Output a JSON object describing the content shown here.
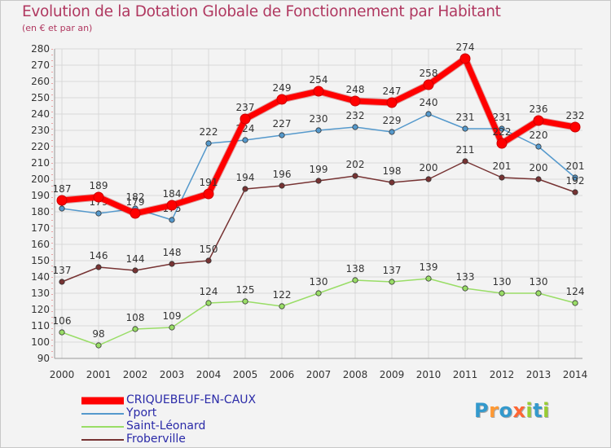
{
  "chart_data": {
    "type": "line",
    "title": "Evolution de la Dotation Globale de Fonctionnement par Habitant",
    "subtitle": "(en € et par an)",
    "xlabel": "",
    "ylabel": "",
    "ylim": [
      90,
      280
    ],
    "ytick_step": 10,
    "grid": true,
    "categories": [
      "2000",
      "2001",
      "2002",
      "2003",
      "2004",
      "2005",
      "2006",
      "2007",
      "2008",
      "2009",
      "2010",
      "2011",
      "2012",
      "2013",
      "2014"
    ],
    "series": [
      {
        "name": "CRIQUEBEUF-EN-CAUX",
        "color": "#ff0000",
        "values": [
          187,
          189,
          179,
          184,
          191,
          237,
          249,
          254,
          248,
          247,
          258,
          274,
          222,
          236,
          232
        ],
        "labels": [
          "187",
          "189",
          "179",
          "184",
          "191",
          "237",
          "249",
          "254",
          "248",
          "247",
          "258",
          "274",
          "222",
          "236",
          "232"
        ]
      },
      {
        "name": "Yport",
        "color": "#5599cc",
        "values": [
          182,
          179,
          182,
          175,
          222,
          224,
          227,
          230,
          232,
          229,
          240,
          231,
          231,
          220,
          201
        ],
        "labels": [
          "",
          "179",
          "182",
          "175",
          "222",
          "224",
          "227",
          "230",
          "232",
          "229",
          "240",
          "231",
          "231",
          "220",
          "201"
        ]
      },
      {
        "name": "Saint-Léonard",
        "color": "#99dd66",
        "values": [
          106,
          98,
          108,
          109,
          124,
          125,
          122,
          130,
          138,
          137,
          139,
          133,
          130,
          130,
          124
        ],
        "labels": [
          "106",
          "98",
          "108",
          "109",
          "124",
          "125",
          "122",
          "130",
          "138",
          "137",
          "139",
          "133",
          "130",
          "130",
          "124"
        ]
      },
      {
        "name": "Froberville",
        "color": "#773333",
        "values": [
          137,
          146,
          144,
          148,
          150,
          194,
          196,
          199,
          202,
          198,
          200,
          211,
          201,
          200,
          192
        ],
        "labels": [
          "137",
          "146",
          "144",
          "148",
          "150",
          "194",
          "196",
          "199",
          "202",
          "198",
          "200",
          "211",
          "201",
          "200",
          "192"
        ]
      }
    ]
  },
  "legend": [
    {
      "name": "CRIQUEBEUF-EN-CAUX",
      "color": "#ff0000",
      "text_color": "#2a2aa8"
    },
    {
      "name": "Yport",
      "color": "#5599cc",
      "text_color": "#2a2aa8"
    },
    {
      "name": "Saint-Léonard",
      "color": "#99dd66",
      "text_color": "#2a2aa8"
    },
    {
      "name": "Froberville",
      "color": "#773333",
      "text_color": "#2a2aa8"
    }
  ],
  "logo": {
    "text": "Proxiti",
    "letters": [
      "P",
      "r",
      "o",
      "x",
      "i",
      "t",
      "i"
    ],
    "colors": [
      "#3399cc",
      "#ff9933",
      "#3399cc",
      "#ff6633",
      "#99cc33",
      "#3399cc",
      "#99cc33"
    ]
  }
}
